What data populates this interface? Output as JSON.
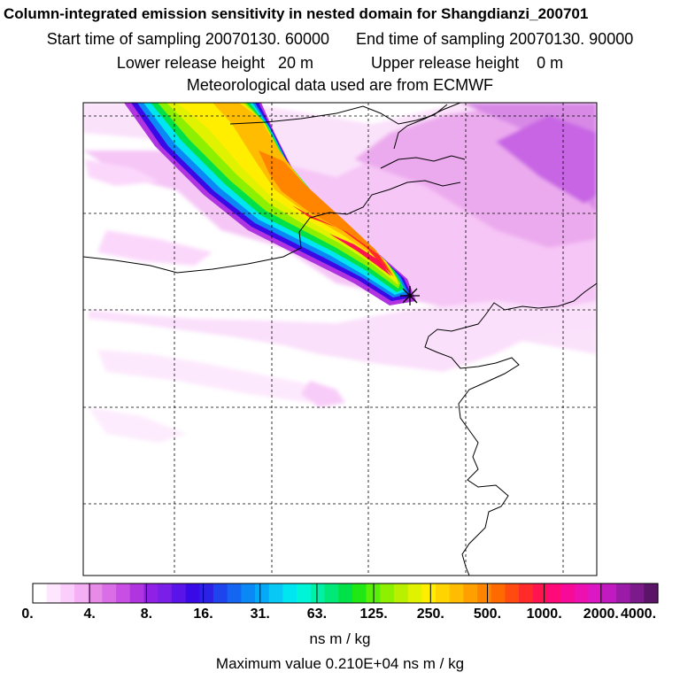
{
  "title": "Column-integrated emission sensitivity in nested domain for Shangdianzi_200701",
  "sampling": {
    "start": "Start time of sampling 20070130. 60000",
    "end": "End time of sampling 20070130. 90000"
  },
  "release": {
    "lower": "Lower release height   20 m",
    "upper": "Upper release height    0 m"
  },
  "met_note": "Meteorological data used are from ECMWF",
  "colorbar": {
    "labels": [
      "0.",
      "4.",
      "8.",
      "16.",
      "31.",
      "63.",
      "125.",
      "250.",
      "500.",
      "1000.",
      "2000.",
      "4000."
    ],
    "colors": [
      "#ffffff",
      "#ffe6ff",
      "#fbcdfb",
      "#f5b0f5",
      "#e68ce8",
      "#d96ee6",
      "#c94ee3",
      "#b035e0",
      "#9020e5",
      "#7a1ee8",
      "#5a14ea",
      "#3a0ae6",
      "#2c22e6",
      "#1e44ee",
      "#1466f2",
      "#0a88f5",
      "#06a8f8",
      "#08c8f5",
      "#00e6f0",
      "#00f5d8",
      "#00f0a8",
      "#00e878",
      "#00e048",
      "#20e814",
      "#5aef08",
      "#8cf000",
      "#b8f000",
      "#e0f200",
      "#ffee00",
      "#ffd400",
      "#ffbc00",
      "#ffa000",
      "#ff8400",
      "#ff6a00",
      "#ff4a10",
      "#ff2a2a",
      "#ff1450",
      "#ff0a78",
      "#f80a98",
      "#ec10b0",
      "#dc18c4",
      "#c01ac0",
      "#9c1aa8",
      "#7c1a8c",
      "#5c1468"
    ]
  },
  "units": "ns m / kg",
  "max_value": "Maximum value  0.210E+04 ns m / kg",
  "receptor_marker": "receptor-star"
}
